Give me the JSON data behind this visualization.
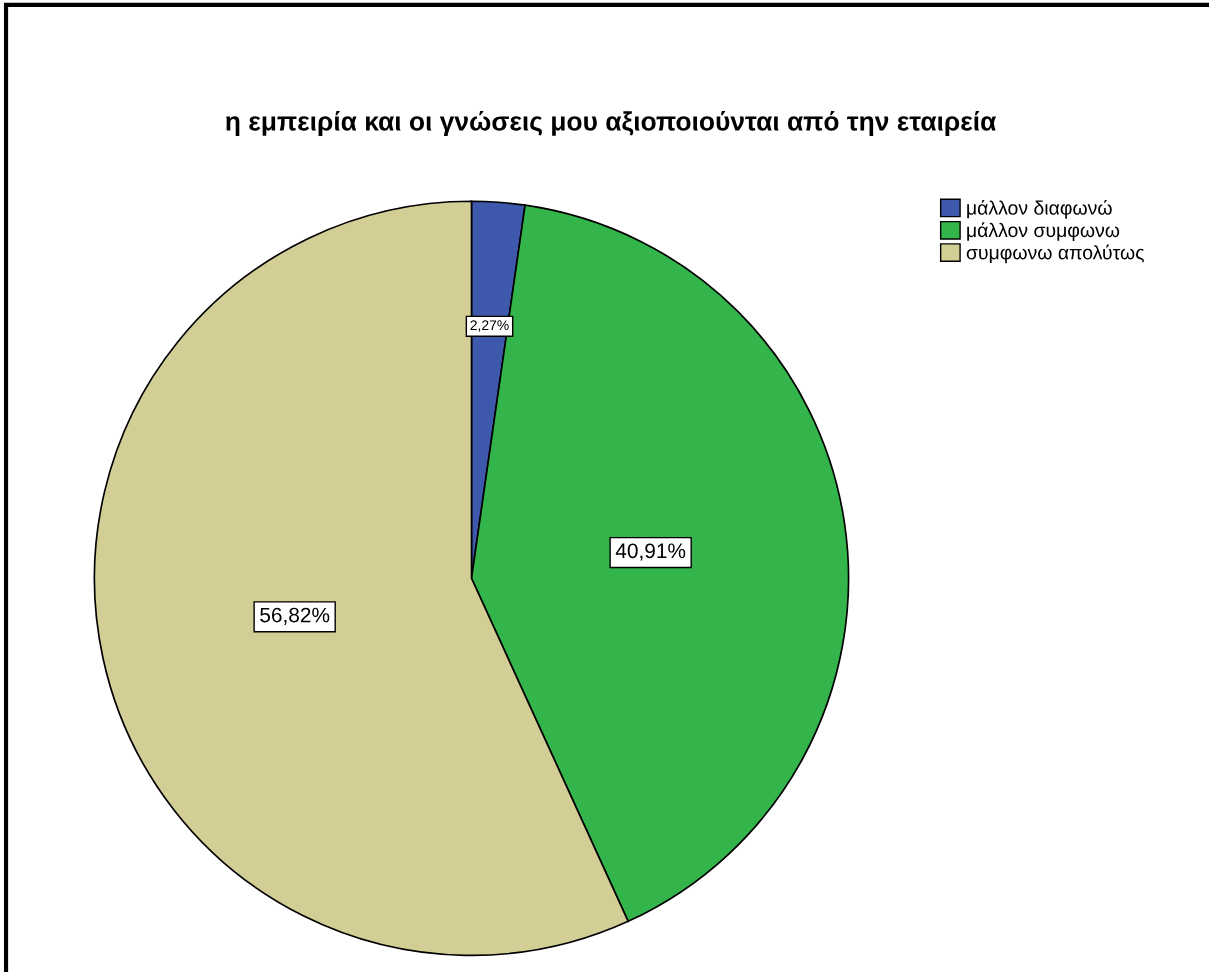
{
  "chart_data": {
    "type": "pie",
    "title": "η εμπειρία και οι γνώσεις μου αξιοποιούνται από την εταιρεία",
    "categories": [
      "μάλλον διαφωνώ",
      "μάλλον συμφωνω",
      "συμφωνω απολύτως"
    ],
    "values": [
      2.27,
      40.91,
      56.82
    ],
    "colors": [
      "#3e58ac",
      "#33b54b",
      "#d3ce96"
    ],
    "value_labels": [
      "2,27%",
      "40,91%",
      "56,82%"
    ],
    "legend": "top right"
  }
}
